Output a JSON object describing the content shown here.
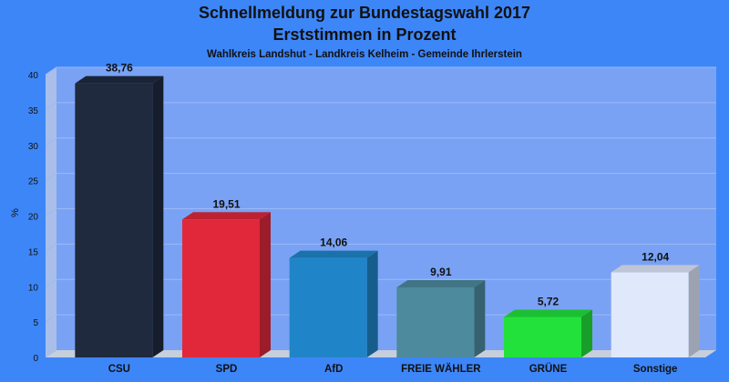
{
  "chart_data": {
    "type": "bar",
    "title": "Schnellmeldung zur Bundestagswahl 2017",
    "subtitle": "Erststimmen in Prozent",
    "subtitle2": "Wahlkreis Landshut - Landkreis Kelheim - Gemeinde Ihrlerstein",
    "ylabel": "%",
    "xlabel": "",
    "ylim": [
      0,
      40
    ],
    "yticks": [
      0,
      5,
      10,
      15,
      20,
      25,
      30,
      35,
      40
    ],
    "grid": true,
    "categories": [
      "CSU",
      "SPD",
      "AfD",
      "FREIE WÄHLER",
      "GRÜNE",
      "Sonstige"
    ],
    "values": [
      38.76,
      19.51,
      14.06,
      9.91,
      5.72,
      12.04
    ],
    "value_labels": [
      "38,76",
      "19,51",
      "14,06",
      "9,91",
      "5,72",
      "12,04"
    ],
    "colors": [
      "#1f2a3f",
      "#e0283a",
      "#2085c8",
      "#4d8a9d",
      "#22e13b",
      "#e0e8fb"
    ]
  }
}
